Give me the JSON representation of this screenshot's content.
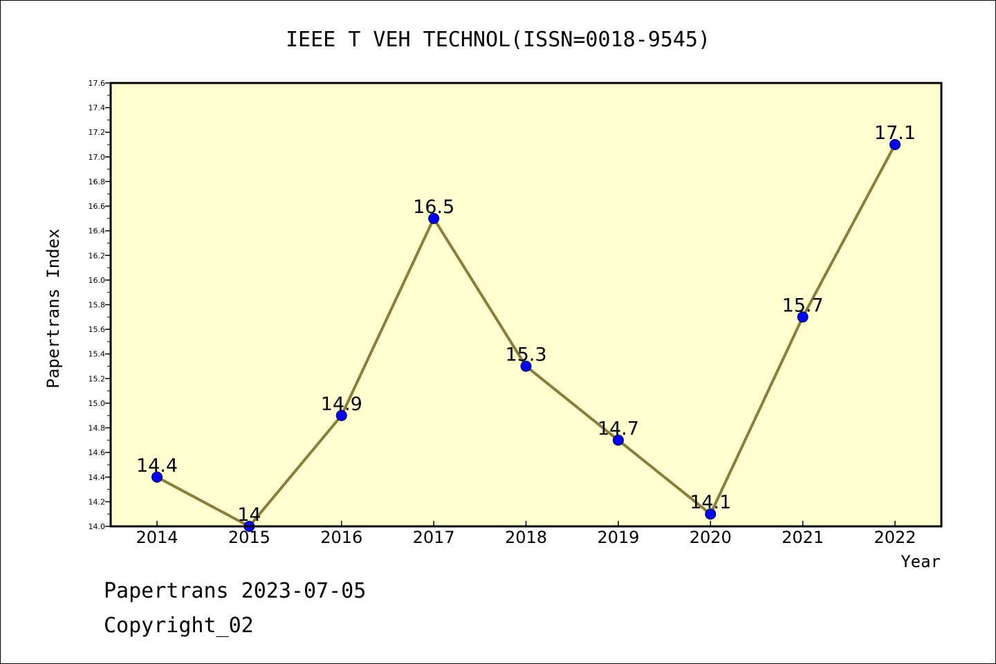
{
  "chart_data": {
    "type": "line",
    "title": "IEEE T VEH TECHNOL(ISSN=0018-9545)",
    "xlabel": "Year",
    "ylabel": "Papertrans Index",
    "categories": [
      "2014",
      "2015",
      "2016",
      "2017",
      "2018",
      "2019",
      "2020",
      "2021",
      "2022"
    ],
    "series": [
      {
        "values": [
          14.4,
          14.0,
          14.9,
          16.5,
          15.3,
          14.7,
          14.1,
          15.7,
          17.1
        ]
      }
    ],
    "data_labels": [
      "14.4",
      "14",
      "14.9",
      "16.5",
      "15.3",
      "14.7",
      "14.1",
      "15.7",
      "17.1"
    ],
    "ylim": [
      14.0,
      17.6
    ],
    "y_ticks": [
      "14.0",
      "14.2",
      "14.4",
      "14.6",
      "14.8",
      "15.0",
      "15.2",
      "15.4",
      "15.6",
      "15.8",
      "16.0",
      "16.2",
      "16.4",
      "16.6",
      "16.8",
      "17.0",
      "17.2",
      "17.4",
      "17.6"
    ],
    "grid": false,
    "legend": "none",
    "colors": {
      "plot_background": "#ffffd0",
      "line": "#8b7d3a",
      "marker": "#0000ff"
    }
  },
  "footer": {
    "line1": "Papertrans 2023-07-05",
    "line2": "Copyright_02"
  }
}
